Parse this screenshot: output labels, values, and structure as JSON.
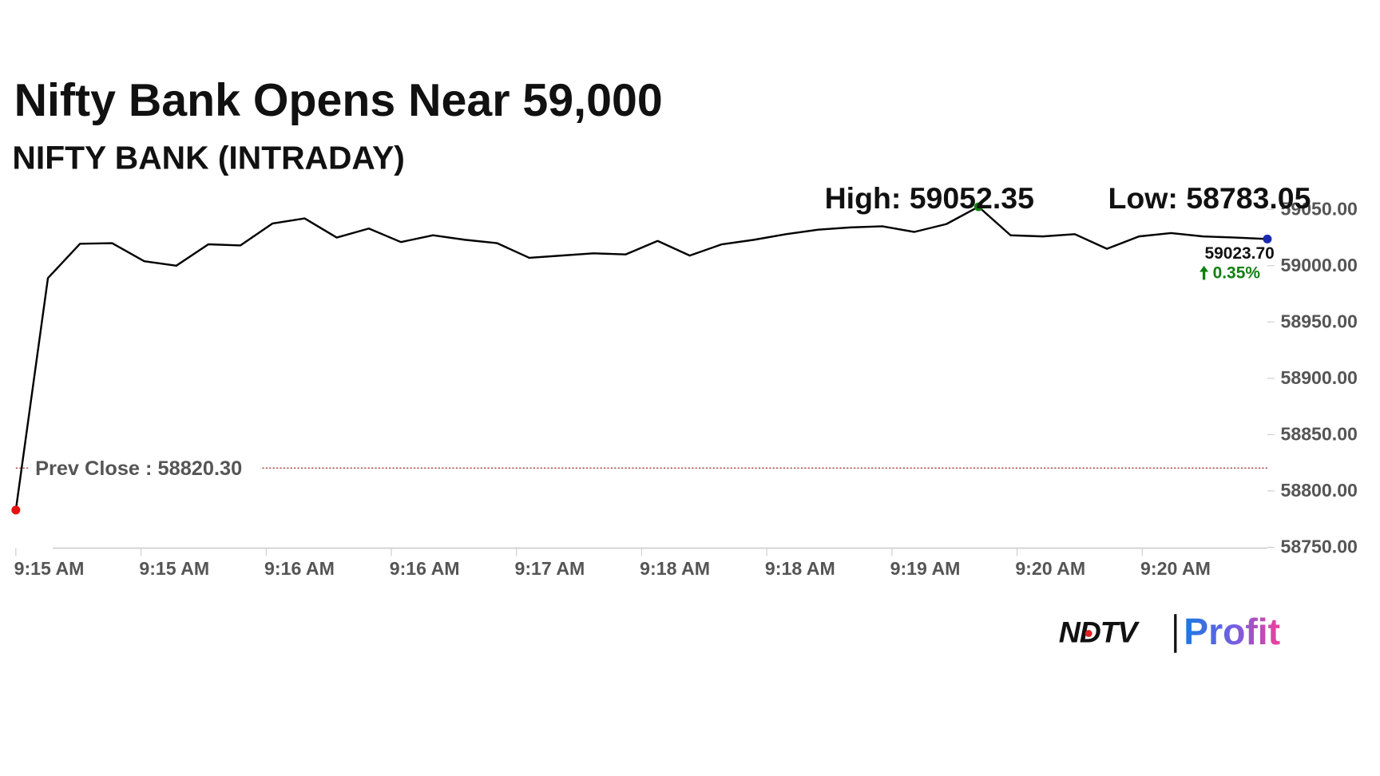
{
  "chart_data": {
    "type": "line",
    "title": "Nifty Bank Opens Near 59,000",
    "subtitle": "NIFTY BANK (INTRADAY)",
    "high_label": "High: 59052.35",
    "low_label": "Low: 58783.05",
    "prev_close_label": "Prev Close : 58820.30",
    "prev_close": 58820.3,
    "last_label": "59023.70",
    "change_label": "0.35%",
    "x": [
      0,
      1,
      2,
      3,
      4,
      5,
      6,
      7,
      8,
      9,
      10,
      11,
      12,
      13,
      14,
      15,
      16,
      17,
      18,
      19,
      20,
      21,
      22,
      23,
      24,
      25,
      26,
      27,
      28,
      29,
      30,
      31,
      32,
      33,
      34,
      35,
      36,
      37,
      38,
      39
    ],
    "series": [
      {
        "name": "NIFTY BANK",
        "color": "#000000",
        "values": [
          58783.05,
          58989,
          59019.5,
          59020,
          59004,
          59000,
          59019,
          59018,
          59037.5,
          59042,
          59025,
          59033,
          59021,
          59027,
          59023,
          59020,
          59007,
          59009,
          59011,
          59010,
          59022,
          59009,
          59019,
          59023,
          59028,
          59032,
          59034,
          59035,
          59030,
          59037,
          59052.35,
          59027,
          59026,
          59028,
          59015,
          59026,
          59029,
          59026,
          59025,
          59023.7
        ]
      }
    ],
    "xlim": [
      0,
      39
    ],
    "xticks": [
      {
        "value": 0,
        "label": "9:15 AM"
      },
      {
        "value": 3.9,
        "label": "9:15 AM"
      },
      {
        "value": 7.8,
        "label": "9:16 AM"
      },
      {
        "value": 11.7,
        "label": "9:16 AM"
      },
      {
        "value": 15.6,
        "label": "9:17 AM"
      },
      {
        "value": 19.5,
        "label": "9:18 AM"
      },
      {
        "value": 23.4,
        "label": "9:18 AM"
      },
      {
        "value": 27.3,
        "label": "9:19 AM"
      },
      {
        "value": 31.2,
        "label": "9:20 AM"
      },
      {
        "value": 35.1,
        "label": "9:20 AM"
      }
    ],
    "ylim": [
      58750,
      59050
    ],
    "yticks": [
      {
        "value": 58750,
        "label": "58750.00"
      },
      {
        "value": 58800,
        "label": "58800.00"
      },
      {
        "value": 58850,
        "label": "58850.00"
      },
      {
        "value": 58900,
        "label": "58900.00"
      },
      {
        "value": 58950,
        "label": "58950.00"
      },
      {
        "value": 59000,
        "label": "59000.00"
      },
      {
        "value": 59050,
        "label": "59050.00"
      }
    ],
    "marker_colors": {
      "low": "#e81010",
      "high": "#108010",
      "last": "#1a2ab0"
    },
    "prev_close_color": "#a04040"
  },
  "logo": {
    "left": "NDTV",
    "right": "Profit"
  }
}
